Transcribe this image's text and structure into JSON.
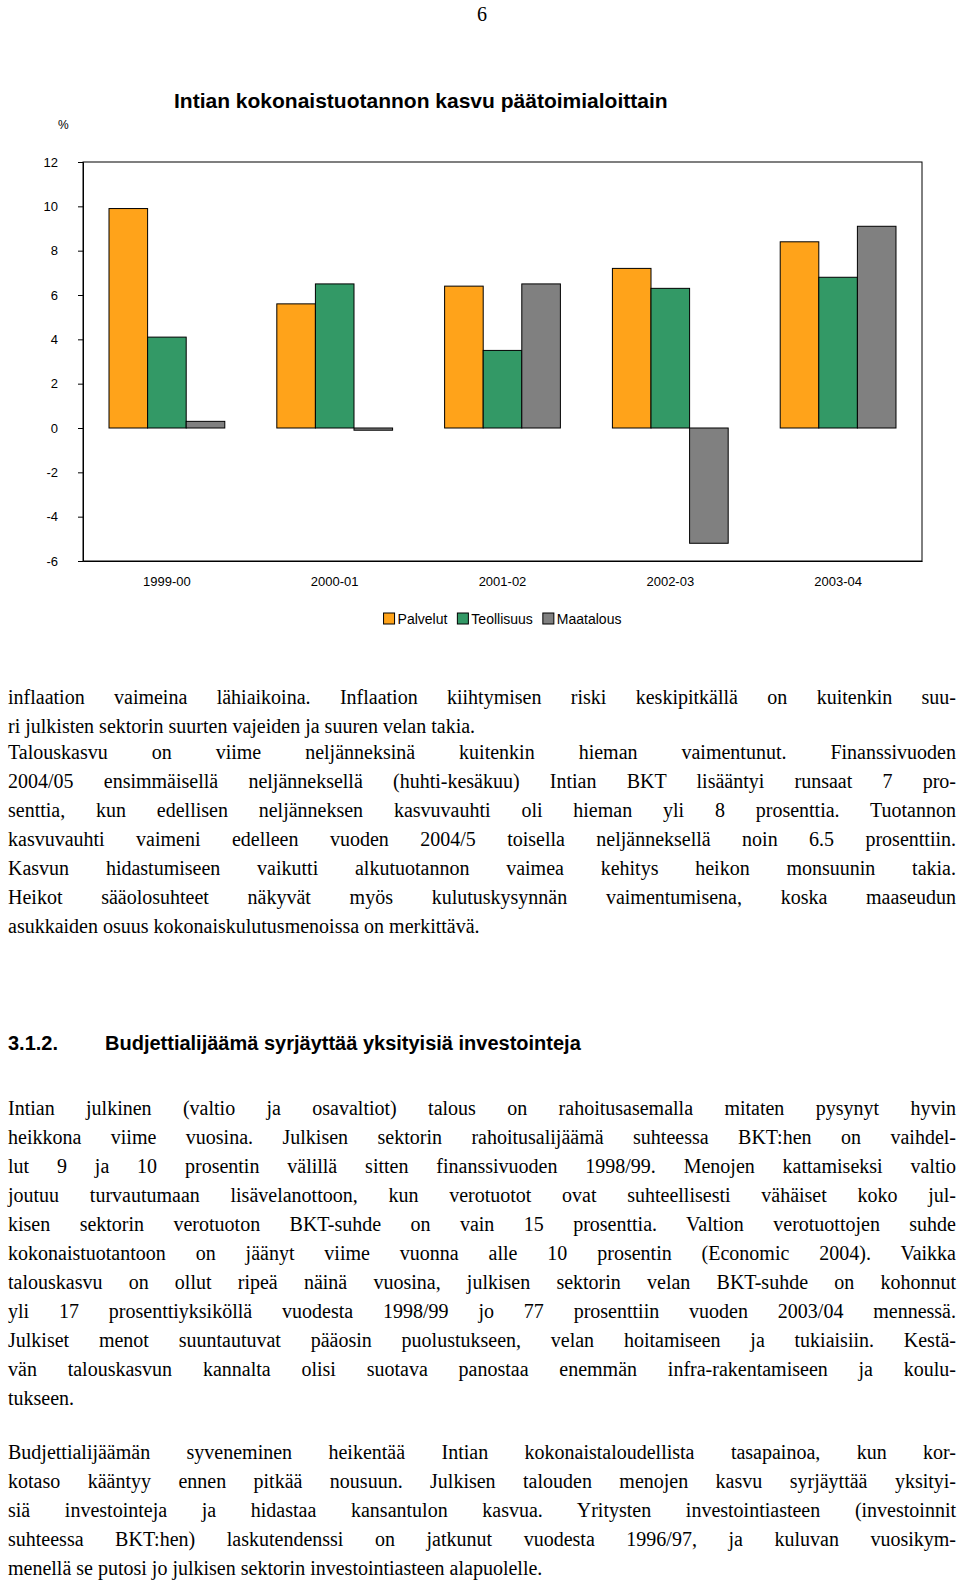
{
  "page_number": "6",
  "chart_data": {
    "type": "bar",
    "title": "Intian kokonaistuotannon kasvu päätoimialoittain",
    "y_label": "%",
    "categories": [
      "1999-00",
      "2000-01",
      "2001-02",
      "2002-03",
      "2003-04"
    ],
    "series": [
      {
        "name": "Palvelut",
        "color": "#ffa31a",
        "values": [
          9.9,
          5.6,
          6.4,
          7.2,
          8.4
        ]
      },
      {
        "name": "Teollisuus",
        "color": "#339966",
        "values": [
          4.1,
          6.5,
          3.5,
          6.3,
          6.8
        ]
      },
      {
        "name": "Maatalous",
        "color": "#808080",
        "values": [
          0.3,
          -0.1,
          6.5,
          -5.2,
          9.1
        ]
      }
    ],
    "ylim": [
      -6,
      12
    ],
    "yticks": [
      -6,
      -4,
      -2,
      0,
      2,
      4,
      6,
      8,
      10,
      12
    ],
    "grid": false,
    "legend": "bottom"
  },
  "body": {
    "paragraphs": [
      {
        "lines": [
          "inflaation vaimeina lähiaikoina. Inflaation kiihtymisen riski keskipitkällä on kuitenkin suu-",
          "ri julkisten sektorin suurten vajeiden ja suuren velan takia."
        ]
      },
      {
        "lines": [
          "Talouskasvu on viime neljänneksinä kuitenkin hieman vaimentunut. Finanssivuoden",
          "2004/05 ensimmäisellä neljänneksellä (huhti-kesäkuu) Intian BKT lisääntyi runsaat 7 pro-",
          "senttia, kun edellisen neljänneksen kasvuvauhti oli hieman yli 8 prosenttia. Tuotannon",
          "kasvuvauhti vaimeni edelleen vuoden 2004/5 toisella neljänneksellä noin 6.5 prosenttiin.",
          "Kasvun hidastumiseen vaikutti alkutuotannon vaimea kehitys heikon monsuunin takia.",
          "Heikot sääolosuhteet näkyvät myös kulutuskysynnän vaimentumisena, koska maaseudun",
          "asukkaiden osuus kokonaiskulutusmenoissa on merkittävä."
        ]
      }
    ],
    "section": {
      "number": "3.1.2.",
      "title": "Budjettialijäämä syrjäyttää yksityisiä investointeja",
      "paragraphs": [
        {
          "lines": [
            "Intian julkinen (valtio ja osavaltiot) talous on rahoitusasemalla mitaten pysynyt hyvin",
            "heikkona viime vuosina. Julkisen sektorin rahoitusalijäämä suhteessa BKT:hen on vaihdel-",
            "lut 9 ja 10 prosentin välillä sitten finanssivuoden 1998/99. Menojen kattamiseksi valtio",
            "joutuu turvautumaan lisävelanottoon, kun verotuotot ovat suhteellisesti vähäiset koko jul-",
            "kisen sektorin verotuoton BKT-suhde on vain 15 prosenttia. Valtion verotuottojen suhde",
            "kokonaistuotantoon on jäänyt viime vuonna alle 10 prosentin (Economic 2004). Vaikka",
            "talouskasvu on ollut ripeä näinä vuosina, julkisen sektorin velan BKT-suhde on kohonnut",
            "yli 17 prosenttiyksiköllä vuodesta 1998/99 jo 77 prosenttiin vuoden 2003/04 mennessä.",
            "Julkiset menot suuntautuvat pääosin puolustukseen, velan hoitamiseen ja tukiaisiin. Kestä-",
            "vän talouskasvun kannalta olisi suotava panostaa enemmän infra-rakentamiseen ja koulu-",
            "tukseen."
          ]
        },
        {
          "lines": [
            "Budjettialijäämän syveneminen heikentää Intian kokonaistaloudellista tasapainoa, kun kor-",
            "kotaso kääntyy ennen pitkää nousuun. Julkisen talouden menojen kasvu syrjäyttää yksityi-",
            "siä investointeja ja hidastaa kansantulon kasvua. Yritysten investointiasteen (investoinnit",
            "suhteessa BKT:hen) laskutendenssi on jatkunut vuodesta 1996/97, ja kuluvan vuosikym-",
            "menellä se putosi jo julkisen sektorin investointiasteen alapuolelle."
          ]
        }
      ]
    }
  }
}
